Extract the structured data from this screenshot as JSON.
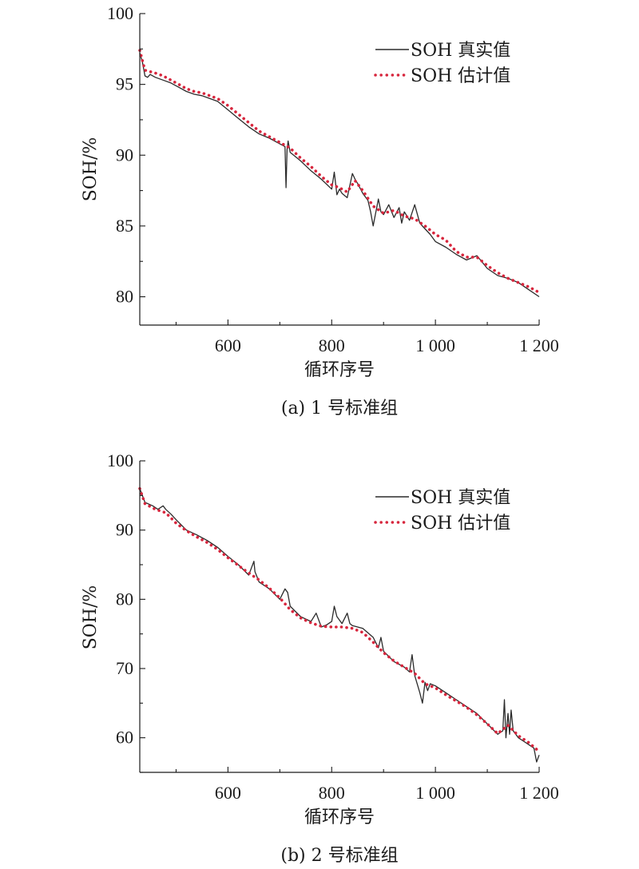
{
  "colors": {
    "true": "#2b2b2b",
    "est": "#d7263d",
    "axis": "#1a1a1a"
  },
  "chart_data": [
    {
      "type": "line",
      "caption": "(a) 1 号标准组",
      "xlabel": "循环序号",
      "ylabel": "SOH/%",
      "xlim": [
        430,
        1200
      ],
      "ylim": [
        78,
        100
      ],
      "xticks": [
        600,
        800,
        1000,
        1200
      ],
      "xtick_labels": [
        "600",
        "800",
        "1 000",
        "1 200"
      ],
      "yticks": [
        80,
        85,
        90,
        95,
        100
      ],
      "ytick_labels": [
        "80",
        "85",
        "90",
        "95",
        "100"
      ],
      "legend_position": "top-right",
      "series": [
        {
          "name": "SOH 真实值",
          "style": "solid",
          "x": [
            430,
            435,
            440,
            445,
            450,
            460,
            475,
            490,
            505,
            520,
            535,
            550,
            565,
            580,
            600,
            620,
            640,
            660,
            680,
            700,
            710,
            712,
            714,
            716,
            720,
            740,
            760,
            780,
            800,
            805,
            810,
            815,
            820,
            830,
            840,
            845,
            850,
            860,
            870,
            875,
            880,
            890,
            895,
            900,
            910,
            920,
            930,
            935,
            940,
            950,
            960,
            970,
            980,
            990,
            1000,
            1020,
            1040,
            1060,
            1080,
            1100,
            1120,
            1140,
            1160,
            1180,
            1200
          ],
          "y": [
            97.2,
            96.6,
            95.6,
            95.5,
            95.7,
            95.5,
            95.3,
            95.1,
            94.8,
            94.5,
            94.3,
            94.2,
            94.0,
            93.8,
            93.2,
            92.6,
            92.0,
            91.5,
            91.2,
            90.8,
            90.6,
            87.7,
            90.4,
            91.0,
            90.2,
            89.6,
            88.9,
            88.3,
            87.6,
            88.8,
            87.2,
            87.6,
            87.3,
            87.0,
            88.7,
            88.3,
            88.0,
            87.3,
            86.8,
            86.0,
            85.0,
            86.9,
            86.0,
            85.8,
            86.5,
            85.6,
            86.3,
            85.2,
            86.0,
            85.4,
            86.5,
            85.2,
            84.8,
            84.4,
            83.9,
            83.5,
            83.0,
            82.6,
            82.9,
            82.0,
            81.5,
            81.3,
            81.0,
            80.5,
            80.0
          ]
        },
        {
          "name": "SOH 估计值",
          "style": "dotted",
          "x": [
            430,
            440,
            450,
            460,
            475,
            490,
            505,
            520,
            535,
            550,
            565,
            580,
            600,
            620,
            640,
            660,
            680,
            700,
            720,
            740,
            760,
            780,
            800,
            815,
            830,
            845,
            860,
            880,
            900,
            920,
            940,
            960,
            980,
            1000,
            1020,
            1040,
            1060,
            1080,
            1100,
            1120,
            1140,
            1160,
            1180,
            1200
          ],
          "y": [
            97.4,
            96.0,
            95.9,
            95.8,
            95.6,
            95.3,
            95.0,
            94.7,
            94.5,
            94.4,
            94.2,
            94.0,
            93.5,
            92.9,
            92.3,
            91.7,
            91.3,
            90.9,
            90.5,
            89.8,
            89.2,
            88.5,
            87.9,
            87.7,
            87.4,
            88.2,
            87.5,
            86.4,
            85.9,
            86.1,
            85.7,
            85.5,
            85.0,
            84.4,
            84.0,
            83.2,
            82.8,
            82.8,
            82.2,
            81.7,
            81.3,
            81.0,
            80.7,
            80.3
          ]
        }
      ]
    },
    {
      "type": "line",
      "caption": "(b) 2 号标准组",
      "xlabel": "循环序号",
      "ylabel": "SOH/%",
      "xlim": [
        430,
        1200
      ],
      "ylim": [
        55,
        100
      ],
      "xticks": [
        600,
        800,
        1000,
        1200
      ],
      "xtick_labels": [
        "600",
        "800",
        "1 000",
        "1 200"
      ],
      "yticks": [
        60,
        70,
        80,
        90,
        100
      ],
      "ytick_labels": [
        "60",
        "70",
        "80",
        "90",
        "100"
      ],
      "legend_position": "top-right",
      "series": [
        {
          "name": "SOH 真实值",
          "style": "solid",
          "x": [
            430,
            440,
            455,
            465,
            475,
            480,
            490,
            500,
            520,
            540,
            560,
            580,
            600,
            620,
            640,
            650,
            652,
            660,
            680,
            700,
            710,
            715,
            720,
            740,
            760,
            770,
            780,
            790,
            800,
            805,
            810,
            820,
            830,
            835,
            840,
            860,
            880,
            890,
            895,
            900,
            920,
            940,
            950,
            955,
            960,
            970,
            975,
            980,
            985,
            990,
            1000,
            1020,
            1040,
            1060,
            1080,
            1100,
            1120,
            1130,
            1133,
            1136,
            1140,
            1143,
            1146,
            1150,
            1160,
            1170,
            1180,
            1190,
            1195,
            1200
          ],
          "y": [
            96.0,
            94.0,
            93.5,
            93.0,
            93.5,
            93.0,
            92.3,
            91.5,
            90.0,
            89.3,
            88.5,
            87.5,
            86.2,
            85.0,
            83.5,
            85.5,
            84.0,
            82.5,
            81.5,
            80.0,
            81.5,
            81.0,
            79.0,
            77.5,
            76.8,
            78.0,
            76.0,
            76.3,
            76.8,
            79.0,
            77.5,
            76.5,
            78.0,
            76.5,
            76.2,
            75.8,
            74.5,
            73.0,
            74.5,
            72.5,
            71.0,
            70.2,
            69.5,
            72.0,
            69.0,
            66.5,
            65.0,
            68.0,
            66.8,
            67.8,
            67.5,
            66.5,
            65.5,
            64.5,
            63.5,
            62.0,
            60.5,
            61.0,
            65.5,
            60.0,
            63.5,
            60.5,
            64.0,
            61.0,
            60.0,
            59.5,
            59.0,
            58.5,
            56.5,
            57.5
          ]
        },
        {
          "name": "SOH 估计值",
          "style": "dotted",
          "x": [
            430,
            440,
            460,
            480,
            500,
            520,
            540,
            560,
            580,
            600,
            620,
            640,
            660,
            680,
            700,
            720,
            740,
            760,
            780,
            800,
            820,
            840,
            860,
            880,
            900,
            920,
            940,
            960,
            980,
            1000,
            1020,
            1040,
            1060,
            1080,
            1100,
            1120,
            1140,
            1160,
            1180,
            1200
          ],
          "y": [
            96.0,
            93.8,
            93.0,
            92.5,
            91.0,
            89.9,
            89.0,
            88.2,
            87.2,
            86.0,
            84.9,
            83.8,
            82.8,
            81.6,
            80.2,
            78.5,
            77.3,
            76.6,
            76.1,
            76.0,
            76.0,
            75.8,
            75.2,
            73.8,
            72.3,
            71.1,
            70.2,
            69.3,
            67.8,
            67.2,
            66.2,
            65.3,
            64.4,
            63.3,
            62.0,
            60.6,
            61.8,
            60.3,
            59.3,
            58.0
          ]
        }
      ]
    }
  ]
}
